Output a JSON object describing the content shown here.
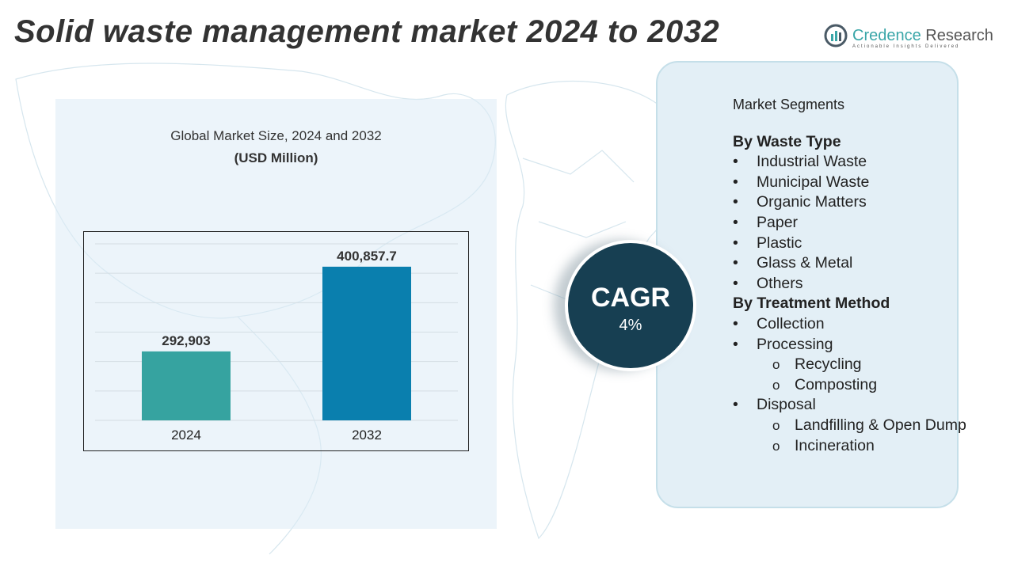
{
  "header": {
    "title": "Solid waste management market 2024 to 2032"
  },
  "logo": {
    "name": "Credence",
    "name2": " Research",
    "tagline": "Actionable Insights Delivered"
  },
  "chart_data": {
    "type": "bar",
    "title": "Global Market Size, 2024 and 2032",
    "subtitle": "(USD Million)",
    "categories": [
      "2024",
      "2032"
    ],
    "values": [
      292903,
      400857.7
    ],
    "value_labels": [
      "292,903",
      "400,857.7"
    ],
    "colors": [
      "#36a3a0",
      "#0a7fae"
    ],
    "ylim": [
      205000,
      430000
    ],
    "grid": true
  },
  "cagr": {
    "label": "CAGR",
    "value": "4%"
  },
  "segments": {
    "heading": "Market Segments",
    "groups": [
      {
        "title": "By Waste Type",
        "items": [
          {
            "t": "Industrial Waste"
          },
          {
            "t": "Municipal Waste"
          },
          {
            "t": "Organic Matters"
          },
          {
            "t": "Paper"
          },
          {
            "t": "Plastic"
          },
          {
            "t": "Glass & Metal"
          },
          {
            "t": "Others"
          }
        ]
      },
      {
        "title": "By Treatment Method",
        "items": [
          {
            "t": "Collection"
          },
          {
            "t": "Processing",
            "sub": [
              "Recycling",
              "Composting"
            ]
          },
          {
            "t": "Disposal",
            "sub": [
              "Landfilling & Open Dump",
              "Incineration"
            ]
          }
        ]
      }
    ]
  }
}
